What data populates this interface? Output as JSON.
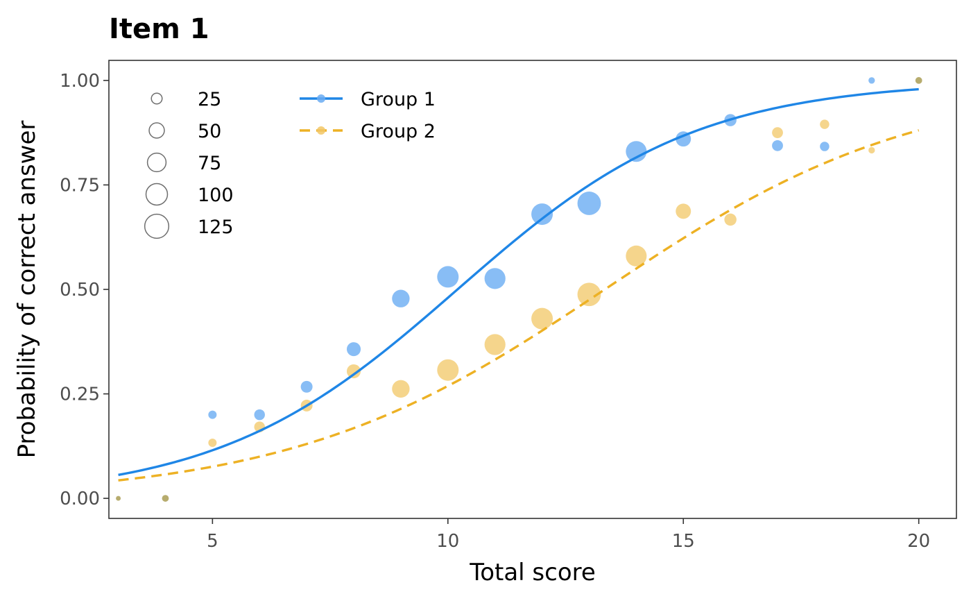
{
  "colors": {
    "group1": "#1f86e6",
    "group1_point": "#6aacf2",
    "group2": "#edb124",
    "group2_point": "#f2c766",
    "overlap_point": "#b7ac6e"
  },
  "chart_data": {
    "type": "scatter",
    "title": "Item 1",
    "xlabel": "Total score",
    "ylabel": "Probability of correct answer",
    "xlim": [
      2.8,
      20.8
    ],
    "ylim": [
      -0.048,
      1.048
    ],
    "x_ticks": [
      5,
      10,
      15,
      20
    ],
    "x_tick_labels": [
      "5",
      "10",
      "15",
      "20"
    ],
    "y_ticks": [
      0,
      0.25,
      0.5,
      0.75,
      1.0
    ],
    "y_tick_labels": [
      "0.00",
      "0.25",
      "0.50",
      "0.75",
      "1.00"
    ],
    "grid": false,
    "size_legend": {
      "placement": "top-left",
      "values": [
        25,
        50,
        75,
        100,
        125
      ],
      "labels": [
        "25",
        "50",
        "75",
        "100",
        "125"
      ]
    },
    "color_legend": {
      "placement": "top-left",
      "labels": [
        "Group 1",
        "Group 2"
      ]
    },
    "series": [
      {
        "name": "Group 1",
        "line_style": "solid",
        "curve": {
          "intercept": -4.0,
          "slope": 0.392
        },
        "points": [
          {
            "x": 3,
            "y": 0.0,
            "n": 5
          },
          {
            "x": 4,
            "y": 0.0,
            "n": 10
          },
          {
            "x": 5,
            "y": 0.2,
            "n": 15
          },
          {
            "x": 6,
            "y": 0.2,
            "n": 25
          },
          {
            "x": 7,
            "y": 0.267,
            "n": 30
          },
          {
            "x": 8,
            "y": 0.357,
            "n": 42
          },
          {
            "x": 9,
            "y": 0.478,
            "n": 67
          },
          {
            "x": 10,
            "y": 0.53,
            "n": 100
          },
          {
            "x": 11,
            "y": 0.526,
            "n": 95
          },
          {
            "x": 12,
            "y": 0.68,
            "n": 100
          },
          {
            "x": 13,
            "y": 0.706,
            "n": 119
          },
          {
            "x": 14,
            "y": 0.83,
            "n": 94
          },
          {
            "x": 15,
            "y": 0.86,
            "n": 50
          },
          {
            "x": 16,
            "y": 0.905,
            "n": 32
          },
          {
            "x": 17,
            "y": 0.844,
            "n": 26
          },
          {
            "x": 18,
            "y": 0.842,
            "n": 19
          },
          {
            "x": 19,
            "y": 1.0,
            "n": 9
          },
          {
            "x": 20,
            "y": 1.0,
            "n": 10
          }
        ]
      },
      {
        "name": "Group 2",
        "line_style": "dashed",
        "curve": {
          "intercept": -4.0,
          "slope": 0.3
        },
        "points": [
          {
            "x": 3,
            "y": 0.0,
            "n": 5
          },
          {
            "x": 4,
            "y": 0.0,
            "n": 10
          },
          {
            "x": 5,
            "y": 0.133,
            "n": 15
          },
          {
            "x": 6,
            "y": 0.171,
            "n": 25
          },
          {
            "x": 7,
            "y": 0.222,
            "n": 30
          },
          {
            "x": 8,
            "y": 0.304,
            "n": 42
          },
          {
            "x": 9,
            "y": 0.262,
            "n": 67
          },
          {
            "x": 10,
            "y": 0.307,
            "n": 100
          },
          {
            "x": 11,
            "y": 0.368,
            "n": 95
          },
          {
            "x": 12,
            "y": 0.43,
            "n": 100
          },
          {
            "x": 13,
            "y": 0.488,
            "n": 119
          },
          {
            "x": 14,
            "y": 0.58,
            "n": 94
          },
          {
            "x": 15,
            "y": 0.687,
            "n": 50
          },
          {
            "x": 16,
            "y": 0.667,
            "n": 32
          },
          {
            "x": 17,
            "y": 0.875,
            "n": 26
          },
          {
            "x": 18,
            "y": 0.895,
            "n": 19
          },
          {
            "x": 19,
            "y": 0.833,
            "n": 9
          },
          {
            "x": 20,
            "y": 1.0,
            "n": 10
          }
        ]
      }
    ]
  }
}
